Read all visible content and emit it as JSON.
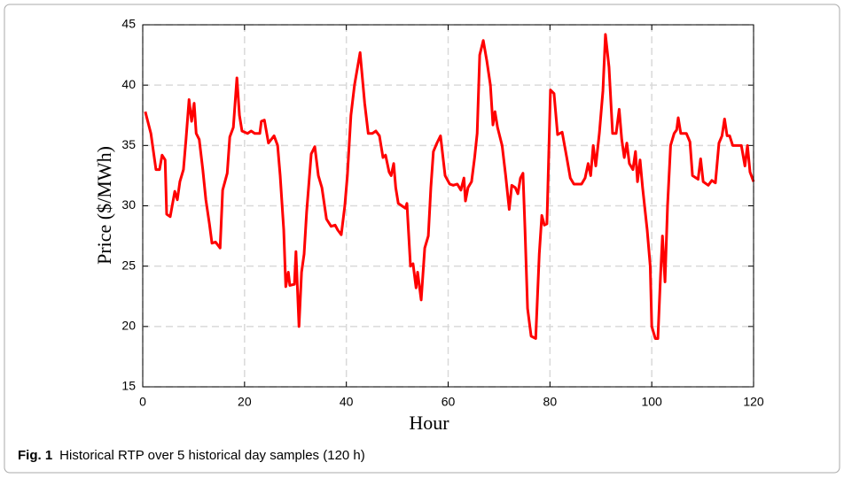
{
  "chart_data": {
    "type": "line",
    "xlabel": "Hour",
    "ylabel": "Price ($/MWh)",
    "caption_label": "Fig. 1",
    "caption_text": "Historical RTP over 5 historical day samples (120 h)",
    "color": "#ff0000",
    "grid": true,
    "xlim": [
      0,
      120
    ],
    "xticks": [
      0,
      20,
      40,
      60,
      80,
      100,
      120
    ],
    "ylim": [
      15,
      45
    ],
    "yticks": [
      15,
      20,
      25,
      30,
      35,
      40,
      45
    ],
    "x": [
      0.5,
      1.6,
      2.6,
      3.3,
      3.8,
      4.4,
      4.7,
      5.4,
      6.3,
      6.8,
      7.3,
      8,
      8.5,
      9.1,
      9.6,
      10.1,
      10.5,
      11.1,
      11.8,
      12.4,
      13.1,
      13.6,
      14.3,
      15.2,
      15.7,
      16.6,
      17.1,
      17.8,
      18.5,
      19,
      19.5,
      20.6,
      21.3,
      22,
      23,
      23.3,
      23.9,
      24.7,
      25.8,
      26.5,
      27,
      27.7,
      28.1,
      28.6,
      28.9,
      29.8,
      30.1,
      30.7,
      31.2,
      31.7,
      32.2,
      33.1,
      33.8,
      34.5,
      35.2,
      36.1,
      37,
      37.8,
      38.3,
      39,
      39.7,
      40.2,
      40.9,
      41.6,
      42.7,
      43.6,
      44.3,
      45.1,
      45.8,
      46.5,
      47.2,
      47.7,
      48.4,
      48.8,
      49.3,
      49.7,
      50.2,
      50.9,
      51.6,
      51.9,
      52.6,
      53.1,
      53.7,
      54,
      54.7,
      55.4,
      56.1,
      56.6,
      57.1,
      57.8,
      58.5,
      59.4,
      60.3,
      61,
      61.8,
      62.5,
      63.1,
      63.4,
      63.9,
      64.6,
      65.2,
      65.7,
      66.2,
      66.9,
      67.6,
      68.3,
      68.8,
      69.2,
      69.7,
      70.6,
      71.3,
      72,
      72.5,
      73.2,
      73.7,
      74.2,
      74.7,
      75.1,
      75.6,
      76.3,
      77.2,
      77.9,
      78.4,
      78.9,
      79.4,
      80.1,
      80.8,
      81.5,
      82.4,
      83.3,
      84,
      84.7,
      86.2,
      86.9,
      87.5,
      88,
      88.5,
      89,
      89.7,
      90.4,
      90.9,
      91.6,
      92.3,
      93,
      93.6,
      94.1,
      94.6,
      95.1,
      95.6,
      96.3,
      96.8,
      97.2,
      97.7,
      98.2,
      99.1,
      99.7,
      100,
      100.7,
      101.2,
      101.7,
      102.1,
      102.6,
      103.1,
      103.7,
      104.4,
      104.9,
      105.2,
      105.7,
      106.8,
      107.5,
      108,
      109.1,
      109.6,
      110.1,
      111.1,
      111.8,
      112.5,
      113.2,
      113.8,
      114.3,
      114.8,
      115.3,
      115.9,
      116.9,
      117.6,
      118.3,
      118.8,
      119.3,
      120
    ],
    "values": [
      37.8,
      36,
      33,
      33,
      34.2,
      33.8,
      29.3,
      29.1,
      31.2,
      30.5,
      32,
      33,
      35.5,
      38.8,
      37,
      38.5,
      36,
      35.5,
      33,
      30.5,
      28.5,
      26.9,
      27,
      26.5,
      31.3,
      32.7,
      35.7,
      36.5,
      40.6,
      37.5,
      36.2,
      36,
      36.2,
      36,
      36,
      37,
      37.1,
      35.2,
      35.8,
      35,
      32.5,
      28,
      23.3,
      24.5,
      23.4,
      23.5,
      26.2,
      20,
      24.5,
      26,
      29.5,
      34.3,
      34.9,
      32.5,
      31.5,
      28.9,
      28.3,
      28.4,
      28,
      27.6,
      30,
      32.5,
      37.5,
      40,
      42.7,
      38.5,
      36,
      36,
      36.2,
      35.8,
      34,
      34.2,
      32.8,
      32.5,
      33.5,
      31.5,
      30.2,
      30,
      29.8,
      30.2,
      25,
      25.2,
      23.2,
      24.5,
      22.2,
      26.5,
      27.5,
      31.5,
      34.5,
      35.2,
      35.8,
      32.5,
      31.8,
      31.7,
      31.8,
      31.3,
      32.3,
      30.4,
      31.5,
      32,
      34,
      36,
      42.5,
      43.7,
      42,
      40,
      36.7,
      37.8,
      36.5,
      35,
      32.5,
      29.7,
      31.7,
      31.5,
      31,
      32.3,
      32.7,
      28,
      21.5,
      19.2,
      19,
      26,
      29.2,
      28.4,
      28.5,
      39.6,
      39.3,
      35.9,
      36.1,
      34,
      32.3,
      31.8,
      31.8,
      32.3,
      33.5,
      32.5,
      35,
      33.3,
      36,
      39.5,
      44.2,
      41.5,
      36,
      36,
      38,
      35.5,
      34,
      35.2,
      33.5,
      33,
      34.5,
      32,
      33.8,
      31.5,
      28,
      25,
      20,
      19,
      19,
      24,
      27.5,
      23.7,
      30,
      35,
      36,
      36.3,
      37.3,
      36,
      36,
      35.3,
      32.5,
      32.2,
      33.9,
      32,
      31.7,
      32.1,
      31.9,
      35.2,
      35.8,
      37.2,
      35.8,
      35.8,
      35,
      35,
      35,
      33.3,
      35,
      32.8,
      32
    ]
  }
}
